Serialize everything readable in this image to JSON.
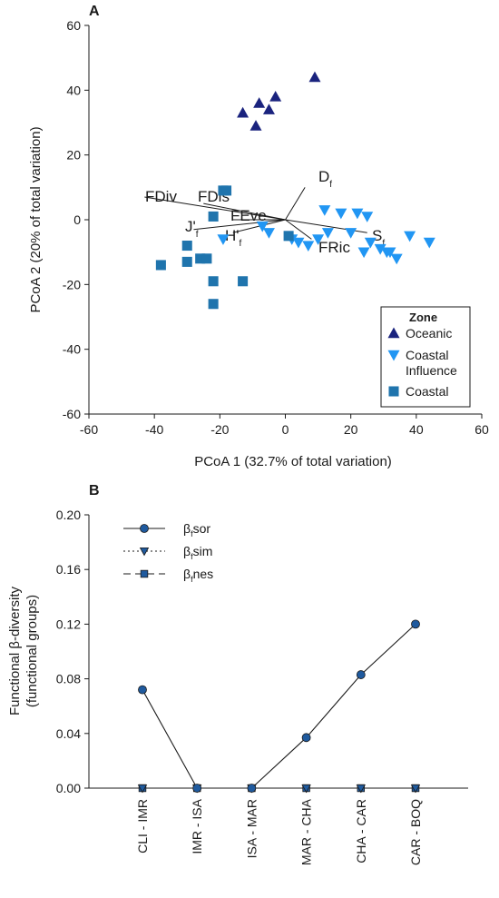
{
  "chart_data": [
    {
      "panel": "A",
      "type": "scatter",
      "xlabel": "PCoA 1 (32.7% of total variation)",
      "ylabel": "PCoA 2 (20% of total variation)",
      "xlim": [
        -60,
        60
      ],
      "ylim": [
        -60,
        60
      ],
      "xticks": [
        -60,
        -40,
        -20,
        0,
        20,
        40,
        60
      ],
      "yticks": [
        -60,
        -40,
        -20,
        0,
        20,
        40,
        60
      ],
      "grid": false,
      "legend": {
        "title": "Zone",
        "position": "bottom-right",
        "entries": [
          {
            "key": "oceanic",
            "lines": [
              "Oceanic"
            ]
          },
          {
            "key": "coastal_influence",
            "lines": [
              "Coastal",
              "Influence"
            ]
          },
          {
            "key": "coastal",
            "lines": [
              "Coastal"
            ]
          }
        ]
      },
      "series": [
        {
          "key": "oceanic",
          "marker": "triangle-up",
          "color": "#1a237e",
          "points": [
            [
              -13,
              33
            ],
            [
              -9,
              29
            ],
            [
              -8,
              36
            ],
            [
              -5,
              34
            ],
            [
              -3,
              38
            ],
            [
              9,
              44
            ]
          ]
        },
        {
          "key": "coastal_influence",
          "marker": "triangle-down",
          "color": "#2196f3",
          "points": [
            [
              -19,
              -6
            ],
            [
              -7,
              -2
            ],
            [
              -5,
              -4
            ],
            [
              2,
              -6
            ],
            [
              4,
              -7
            ],
            [
              7,
              -8
            ],
            [
              10,
              -6
            ],
            [
              12,
              3
            ],
            [
              13,
              -4
            ],
            [
              17,
              2
            ],
            [
              20,
              -4
            ],
            [
              22,
              2
            ],
            [
              24,
              -10
            ],
            [
              25,
              1
            ],
            [
              26,
              -7
            ],
            [
              29,
              -9
            ],
            [
              31,
              -10
            ],
            [
              32,
              -10
            ],
            [
              34,
              -12
            ],
            [
              38,
              -5
            ],
            [
              44,
              -7
            ]
          ]
        },
        {
          "key": "coastal",
          "marker": "square",
          "color": "#1f74ad",
          "points": [
            [
              -38,
              -14
            ],
            [
              -30,
              -8
            ],
            [
              -30,
              -13
            ],
            [
              -26,
              -12
            ],
            [
              -24,
              -12
            ],
            [
              -22,
              1
            ],
            [
              -22,
              -19
            ],
            [
              -22,
              -26
            ],
            [
              -19,
              9
            ],
            [
              -18,
              9
            ],
            [
              -13,
              -19
            ],
            [
              1,
              -5
            ]
          ]
        }
      ],
      "vectors": [
        {
          "label": "FDiv",
          "sub": "",
          "x": -43,
          "y": 7
        },
        {
          "label": "FDis",
          "sub": "",
          "x": -25,
          "y": 5
        },
        {
          "label": "FEve",
          "sub": "",
          "x": -16,
          "y": 0
        },
        {
          "label": "J'",
          "sub": "f",
          "x": -28,
          "y": -3
        },
        {
          "label": "H'",
          "sub": "f",
          "x": -16,
          "y": -4
        },
        {
          "label": "D",
          "sub": "f",
          "x": 6,
          "y": 10
        },
        {
          "label": "FRic",
          "sub": "",
          "x": 8,
          "y": -6
        },
        {
          "label": "S",
          "sub": "f",
          "x": 25,
          "y": -4
        }
      ]
    },
    {
      "panel": "B",
      "type": "line",
      "ylabel": [
        "Functional β-diversity",
        "(functional groups)"
      ],
      "categories": [
        "CLI - IMR",
        "IMR - ISA",
        "ISA - MAR",
        "MAR - CHA",
        "CHA - CAR",
        "CAR - BOQ"
      ],
      "ylim": [
        0,
        0.2
      ],
      "yticks": [
        "0.00",
        "0.04",
        "0.08",
        "0.12",
        "0.16",
        "0.20"
      ],
      "grid": false,
      "legend_position": "top-left",
      "series": [
        {
          "key": "sor",
          "name_main": "β",
          "name_sub": "f",
          "name_rest": "sor",
          "marker": "circle",
          "line": "solid",
          "values": [
            0.072,
            0.0,
            0.0,
            0.037,
            0.083,
            0.12
          ]
        },
        {
          "key": "sim",
          "name_main": "β",
          "name_sub": "f",
          "name_rest": "sim",
          "marker": "triangle-down",
          "line": "dotted",
          "values": [
            0.0,
            0.0,
            0.0,
            0.0,
            0.0,
            0.0
          ]
        },
        {
          "key": "nes",
          "name_main": "β",
          "name_sub": "f",
          "name_rest": "nes",
          "marker": "square",
          "line": "dashed",
          "values": [
            0.0,
            0.0,
            0.0,
            0.0,
            0.0,
            0.0
          ]
        }
      ]
    }
  ]
}
